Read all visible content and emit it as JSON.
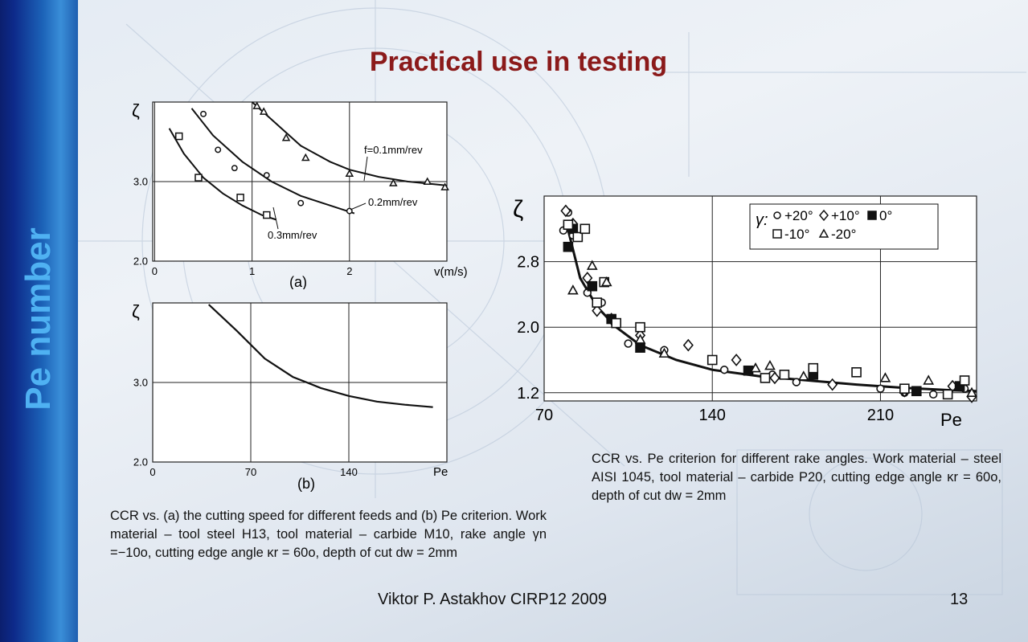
{
  "sidebar": {
    "label": "Pe number"
  },
  "slide": {
    "title": "Practical use in testing"
  },
  "footer": {
    "author": "Viktor P. Astakhov CIRP12 2009",
    "page": "13"
  },
  "captions": {
    "left": "CCR vs. (a) the cutting speed for different feeds and (b) Pe criterion. Work material – tool steel H13, tool material – carbide M10, rake angle γn =−10o, cutting edge angle κr = 60o, depth of cut dw = 2mm",
    "right": "CCR vs. Pe criterion for different rake angles. Work material – steel AISI 1045, tool material – carbide P20, cutting edge angle κr = 60o, depth of cut dw = 2mm"
  },
  "chart_data": [
    {
      "id": "a",
      "type": "scatter",
      "panel_label": "(a)",
      "ylabel": "ζ",
      "xlabel": "v(m/s)",
      "xlim": [
        0,
        3
      ],
      "ylim": [
        2.0,
        4.0
      ],
      "xticks": [
        "0",
        "1",
        "2"
      ],
      "yticks": [
        "2.0",
        "3.0"
      ],
      "series": [
        {
          "name": "f=0.1mm/rev",
          "marker": "triangle",
          "points": [
            [
              1.05,
              3.95
            ],
            [
              1.12,
              3.88
            ],
            [
              1.35,
              3.55
            ],
            [
              1.55,
              3.3
            ],
            [
              2.0,
              3.1
            ],
            [
              2.45,
              2.98
            ],
            [
              2.8,
              3.0
            ],
            [
              2.98,
              2.93
            ]
          ],
          "fit": [
            [
              1.0,
              4.0
            ],
            [
              1.2,
              3.78
            ],
            [
              1.5,
              3.45
            ],
            [
              1.8,
              3.25
            ],
            [
              2.0,
              3.15
            ],
            [
              2.3,
              3.06
            ],
            [
              2.6,
              3.0
            ],
            [
              3.0,
              2.95
            ]
          ]
        },
        {
          "name": "0.2mm/rev",
          "marker": "circle",
          "points": [
            [
              0.5,
              3.85
            ],
            [
              0.65,
              3.4
            ],
            [
              0.82,
              3.17
            ],
            [
              1.15,
              3.08
            ],
            [
              1.5,
              2.73
            ],
            [
              2.0,
              2.63
            ]
          ],
          "fit": [
            [
              0.38,
              3.92
            ],
            [
              0.6,
              3.58
            ],
            [
              0.9,
              3.25
            ],
            [
              1.2,
              3.0
            ],
            [
              1.5,
              2.82
            ],
            [
              1.8,
              2.7
            ],
            [
              2.05,
              2.6
            ]
          ]
        },
        {
          "name": "0.3mm/rev",
          "marker": "square",
          "points": [
            [
              0.25,
              3.57
            ],
            [
              0.45,
              3.05
            ],
            [
              0.88,
              2.8
            ],
            [
              1.15,
              2.58
            ]
          ],
          "fit": [
            [
              0.15,
              3.67
            ],
            [
              0.3,
              3.35
            ],
            [
              0.5,
              3.05
            ],
            [
              0.7,
              2.85
            ],
            [
              0.9,
              2.7
            ],
            [
              1.1,
              2.58
            ],
            [
              1.25,
              2.52
            ]
          ]
        }
      ]
    },
    {
      "id": "b",
      "type": "line",
      "panel_label": "(b)",
      "ylabel": "ζ",
      "xlabel": "Pe",
      "xlim": [
        0,
        210
      ],
      "ylim": [
        2.0,
        4.0
      ],
      "xticks": [
        "0",
        "70",
        "140"
      ],
      "yticks": [
        "2.0",
        "3.0"
      ],
      "series": [
        {
          "name": "",
          "points": [
            [
              40,
              3.98
            ],
            [
              60,
              3.65
            ],
            [
              80,
              3.3
            ],
            [
              100,
              3.07
            ],
            [
              120,
              2.93
            ],
            [
              140,
              2.83
            ],
            [
              160,
              2.76
            ],
            [
              180,
              2.72
            ],
            [
              200,
              2.69
            ]
          ]
        }
      ]
    },
    {
      "id": "c",
      "type": "scatter",
      "ylabel": "ζ",
      "xlabel": "Pe",
      "xlim": [
        70,
        250
      ],
      "ylim": [
        1.1,
        3.6
      ],
      "xticks": [
        "70",
        "140",
        "210"
      ],
      "yticks": [
        "1.2",
        "2.0",
        "2.8"
      ],
      "legend": {
        "title": "γ:",
        "position": "top-right"
      },
      "fit": [
        [
          79,
          3.3
        ],
        [
          85,
          2.6
        ],
        [
          92,
          2.25
        ],
        [
          100,
          2.0
        ],
        [
          110,
          1.78
        ],
        [
          125,
          1.6
        ],
        [
          140,
          1.48
        ],
        [
          160,
          1.4
        ],
        [
          180,
          1.35
        ],
        [
          200,
          1.3
        ],
        [
          220,
          1.26
        ],
        [
          240,
          1.23
        ],
        [
          250,
          1.22
        ]
      ],
      "series": [
        {
          "name": "+20°",
          "marker": "circle",
          "points": [
            [
              78,
              3.18
            ],
            [
              80,
              3.4
            ],
            [
              82,
              3.12
            ],
            [
              88,
              2.42
            ],
            [
              94,
              2.3
            ],
            [
              105,
              1.8
            ],
            [
              120,
              1.72
            ],
            [
              145,
              1.48
            ],
            [
              165,
              1.42
            ],
            [
              175,
              1.33
            ],
            [
              210,
              1.25
            ],
            [
              220,
              1.2
            ],
            [
              232,
              1.18
            ],
            [
              245,
              1.25
            ]
          ]
        },
        {
          "name": "+10°",
          "marker": "diamond",
          "points": [
            [
              79,
              3.42
            ],
            [
              82,
              3.26
            ],
            [
              88,
              2.6
            ],
            [
              92,
              2.2
            ],
            [
              98,
              2.1
            ],
            [
              110,
              1.9
            ],
            [
              130,
              1.78
            ],
            [
              150,
              1.6
            ],
            [
              166,
              1.38
            ],
            [
              190,
              1.3
            ],
            [
              220,
              1.22
            ],
            [
              240,
              1.28
            ],
            [
              248,
              1.15
            ]
          ]
        },
        {
          "name": "0°",
          "marker": "filled-square",
          "points": [
            [
              80,
              2.98
            ],
            [
              82,
              3.2
            ],
            [
              90,
              2.5
            ],
            [
              98,
              2.1
            ],
            [
              110,
              1.75
            ],
            [
              155,
              1.47
            ],
            [
              182,
              1.42
            ],
            [
              225,
              1.22
            ],
            [
              243,
              1.28
            ]
          ]
        },
        {
          "name": "-10°",
          "marker": "square",
          "points": [
            [
              80,
              3.25
            ],
            [
              84,
              3.1
            ],
            [
              87,
              3.2
            ],
            [
              92,
              2.3
            ],
            [
              95,
              2.55
            ],
            [
              100,
              2.05
            ],
            [
              110,
              2.0
            ],
            [
              140,
              1.6
            ],
            [
              162,
              1.38
            ],
            [
              170,
              1.42
            ],
            [
              182,
              1.5
            ],
            [
              200,
              1.45
            ],
            [
              220,
              1.25
            ],
            [
              238,
              1.18
            ],
            [
              245,
              1.35
            ]
          ]
        },
        {
          "name": "-20°",
          "marker": "triangle",
          "points": [
            [
              82,
              2.45
            ],
            [
              90,
              2.75
            ],
            [
              96,
              2.55
            ],
            [
              110,
              1.85
            ],
            [
              120,
              1.68
            ],
            [
              158,
              1.5
            ],
            [
              164,
              1.53
            ],
            [
              178,
              1.4
            ],
            [
              212,
              1.38
            ],
            [
              230,
              1.35
            ],
            [
              248,
              1.2
            ]
          ]
        }
      ]
    }
  ]
}
